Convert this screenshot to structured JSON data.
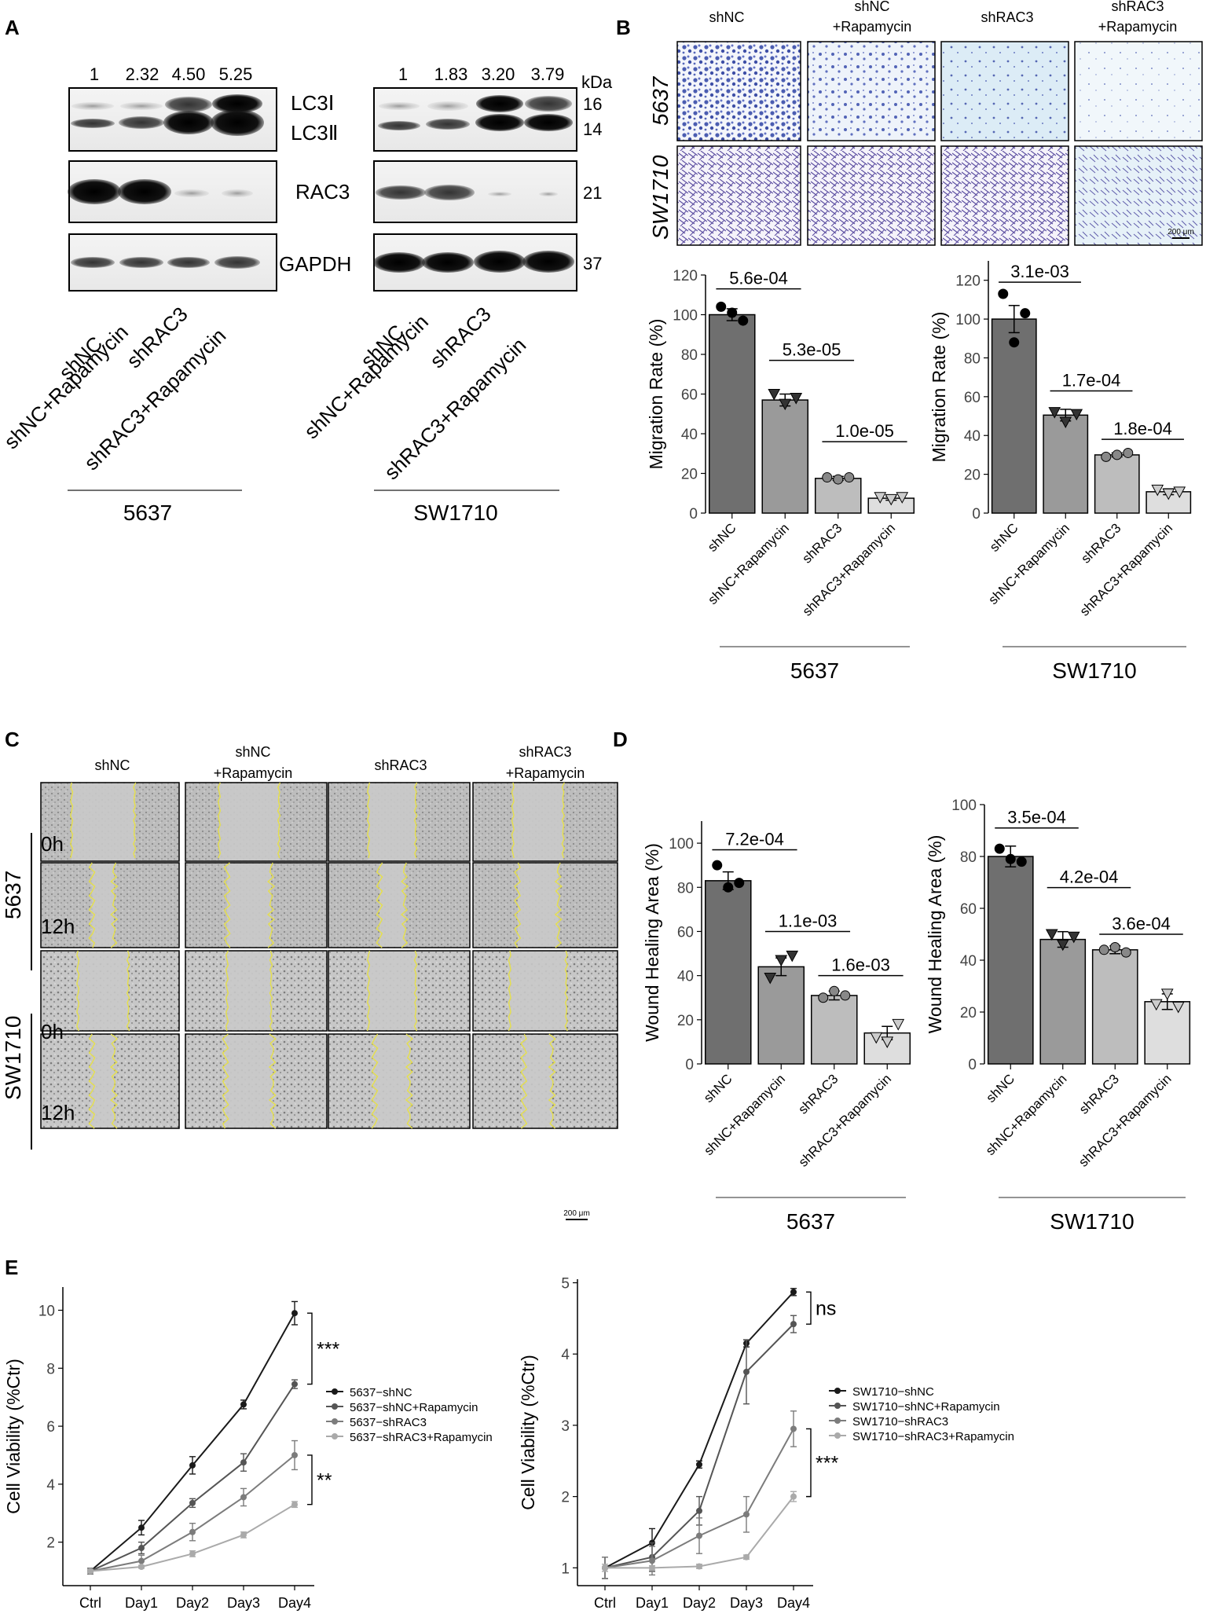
{
  "figure": {
    "panel_letters": [
      "A",
      "B",
      "C",
      "D",
      "E"
    ]
  },
  "panel_a": {
    "kda_label": "kDa",
    "blot_labels": [
      "LC3Ⅰ",
      "LC3Ⅱ",
      "RAC3",
      "GAPDH"
    ],
    "kda_values": [
      "16",
      "14",
      "21",
      "37"
    ],
    "lane_labels": [
      "shNC",
      "shNC+Rapamycin",
      "shRAC3",
      "shRAC3+Rapamycin"
    ],
    "cells": [
      {
        "name": "5637",
        "quant": [
          "1",
          "2.32",
          "4.50",
          "5.25"
        ]
      },
      {
        "name": "SW1710",
        "quant": [
          "1",
          "1.83",
          "3.20",
          "3.79"
        ]
      }
    ]
  },
  "panel_b": {
    "col_labels": [
      [
        "shNC"
      ],
      [
        "shNC",
        "+Rapamycin"
      ],
      [
        "shRAC3"
      ],
      [
        "shRAC3",
        "+Rapamycin"
      ]
    ],
    "row_labels": [
      "5637",
      "SW1710"
    ],
    "scale_bar": "200 μm"
  },
  "panel_c": {
    "col_labels": [
      [
        "shNC"
      ],
      [
        "shNC",
        "+Rapamycin"
      ],
      [
        "shRAC3"
      ],
      [
        "shRAC3",
        "+Rapamycin"
      ]
    ],
    "row_groups": [
      "5637",
      "SW1710"
    ],
    "time_labels": [
      "0h",
      "12h"
    ],
    "scale_bar": "200 μm"
  },
  "chart_data": [
    {
      "id": "B-5637",
      "type": "bar",
      "categories": [
        "shNC",
        "shNC+Rapamycin",
        "shRAC3",
        "shRAC3+Rapamycin"
      ],
      "values": [
        100,
        57,
        17.5,
        7.5
      ],
      "errors": [
        3,
        3,
        1,
        1
      ],
      "points": [
        [
          104,
          101,
          97
        ],
        [
          60,
          55,
          58
        ],
        [
          18,
          17,
          18
        ],
        [
          8,
          7,
          8
        ]
      ],
      "ylabel": "Migration Rate (%)",
      "ylim": [
        0,
        120
      ],
      "yticks": [
        0,
        20,
        40,
        60,
        80,
        100,
        120
      ],
      "comparisons": [
        {
          "from": 0,
          "to": 1,
          "y": 113,
          "label": "5.6e-04"
        },
        {
          "from": 1,
          "to": 2,
          "y": 77,
          "label": "5.3e-05"
        },
        {
          "from": 2,
          "to": 3,
          "y": 36,
          "label": "1.0e-05"
        }
      ],
      "group_label": "5637"
    },
    {
      "id": "B-SW1710",
      "type": "bar",
      "categories": [
        "shNC",
        "shNC+Rapamycin",
        "shRAC3",
        "shRAC3+Rapamycin"
      ],
      "values": [
        100,
        50.5,
        30,
        11
      ],
      "errors": [
        7,
        3,
        1,
        1.5
      ],
      "points": [
        [
          113,
          88,
          103
        ],
        [
          52,
          47,
          51
        ],
        [
          29,
          30,
          31
        ],
        [
          12,
          10,
          11
        ]
      ],
      "ylabel": "Migration Rate (%)",
      "ylim": [
        0,
        130
      ],
      "yticks": [
        0,
        20,
        40,
        60,
        80,
        100,
        120
      ],
      "comparisons": [
        {
          "from": 0,
          "to": 1,
          "y": 119,
          "label": "3.1e-03"
        },
        {
          "from": 1,
          "to": 2,
          "y": 63,
          "label": "1.7e-04"
        },
        {
          "from": 2,
          "to": 3,
          "y": 38,
          "label": "1.8e-04"
        }
      ],
      "group_label": "SW1710"
    },
    {
      "id": "D-5637",
      "type": "bar",
      "categories": [
        "shNC",
        "shNC+Rapamycin",
        "shRAC3",
        "shRAC3+Rapamycin"
      ],
      "values": [
        83,
        44,
        31,
        14
      ],
      "errors": [
        4,
        4,
        2,
        3
      ],
      "points": [
        [
          90,
          80,
          82
        ],
        [
          39,
          47,
          49
        ],
        [
          30,
          33,
          31
        ],
        [
          12,
          10,
          18
        ]
      ],
      "ylabel": "Wound Healing Area (%)",
      "ylim": [
        0,
        110
      ],
      "yticks": [
        0,
        20,
        40,
        60,
        80,
        100
      ],
      "comparisons": [
        {
          "from": 0,
          "to": 1,
          "y": 97,
          "label": "7.2e-04"
        },
        {
          "from": 1,
          "to": 2,
          "y": 60,
          "label": "1.1e-03"
        },
        {
          "from": 2,
          "to": 3,
          "y": 40,
          "label": "1.6e-03"
        }
      ],
      "group_label": "5637"
    },
    {
      "id": "D-SW1710",
      "type": "bar",
      "categories": [
        "shNC",
        "shNC+Rapamycin",
        "shRAC3",
        "shRAC3+Rapamycin"
      ],
      "values": [
        80,
        48,
        44,
        24
      ],
      "errors": [
        4,
        3,
        1.5,
        3
      ],
      "points": [
        [
          83,
          79,
          78
        ],
        [
          50,
          46,
          49
        ],
        [
          44,
          45,
          43
        ],
        [
          23,
          27,
          22
        ]
      ],
      "ylabel": "Wound Healing Area (%)",
      "ylim": [
        0,
        100
      ],
      "yticks": [
        0,
        20,
        40,
        60,
        80,
        100
      ],
      "comparisons": [
        {
          "from": 0,
          "to": 1,
          "y": 91,
          "label": "3.5e-04"
        },
        {
          "from": 1,
          "to": 2,
          "y": 68,
          "label": "4.2e-04"
        },
        {
          "from": 2,
          "to": 3,
          "y": 50,
          "label": "3.6e-04"
        }
      ],
      "group_label": "SW1710"
    },
    {
      "id": "E-5637",
      "type": "line",
      "x": [
        "Ctrl",
        "Day1",
        "Day2",
        "Day3",
        "Day4"
      ],
      "ylabel": "Cell Viability (%Ctr)",
      "ylim": [
        0.5,
        10.8
      ],
      "yticks": [
        2,
        4,
        6,
        8,
        10
      ],
      "series": [
        {
          "name": "5637−shNC",
          "values": [
            1,
            2.5,
            4.65,
            6.75,
            9.9
          ],
          "errors": [
            0.1,
            0.25,
            0.3,
            0.15,
            0.4
          ],
          "marker": "circle"
        },
        {
          "name": "5637−shNC+Rapamycin",
          "values": [
            1,
            1.8,
            3.35,
            4.75,
            7.45
          ],
          "errors": [
            0.1,
            0.2,
            0.15,
            0.3,
            0.15
          ],
          "marker": "diamond"
        },
        {
          "name": "5637−shRAC3",
          "values": [
            1,
            1.35,
            2.35,
            3.55,
            5.0
          ],
          "errors": [
            0.1,
            0.2,
            0.3,
            0.3,
            0.5
          ],
          "marker": "triangle"
        },
        {
          "name": "5637−shRAC3+Rapamycin",
          "values": [
            1,
            1.15,
            1.6,
            2.25,
            3.3
          ],
          "errors": [
            0.05,
            0.05,
            0.1,
            0.1,
            0.1
          ],
          "marker": "square"
        }
      ],
      "annotations": [
        {
          "label": "***",
          "y1": 9.9,
          "y2": 7.45
        },
        {
          "label": "**",
          "y1": 5.0,
          "y2": 3.3
        }
      ]
    },
    {
      "id": "E-SW1710",
      "type": "line",
      "x": [
        "Ctrl",
        "Day1",
        "Day2",
        "Day3",
        "Day4"
      ],
      "ylabel": "Cell Viability (%Ctr)",
      "ylim": [
        0.75,
        5.05
      ],
      "yticks": [
        1,
        2,
        3,
        4,
        5
      ],
      "series": [
        {
          "name": "SW1710−shNC",
          "values": [
            1,
            1.35,
            2.45,
            4.15,
            4.87
          ],
          "errors": [
            0.15,
            0.2,
            0.05,
            0.05,
            0.05
          ],
          "marker": "circle"
        },
        {
          "name": "SW1710−shNC+Rapamycin",
          "values": [
            1,
            1.15,
            1.8,
            3.75,
            4.42
          ],
          "errors": [
            0.15,
            0.2,
            0.2,
            0.45,
            0.12
          ],
          "marker": "diamond"
        },
        {
          "name": "SW1710−shRAC3",
          "values": [
            1,
            1.1,
            1.45,
            1.75,
            2.95
          ],
          "errors": [
            0.15,
            0.2,
            0.25,
            0.25,
            0.25
          ],
          "marker": "triangle"
        },
        {
          "name": "SW1710−shRAC3+Rapamycin",
          "values": [
            1,
            1.0,
            1.02,
            1.15,
            2.0
          ],
          "errors": [
            0.05,
            0.03,
            0.03,
            0.03,
            0.07
          ],
          "marker": "square"
        }
      ],
      "annotations": [
        {
          "label": "ns",
          "y1": 4.87,
          "y2": 4.42
        },
        {
          "label": "***",
          "y1": 2.95,
          "y2": 2.0
        }
      ]
    }
  ]
}
